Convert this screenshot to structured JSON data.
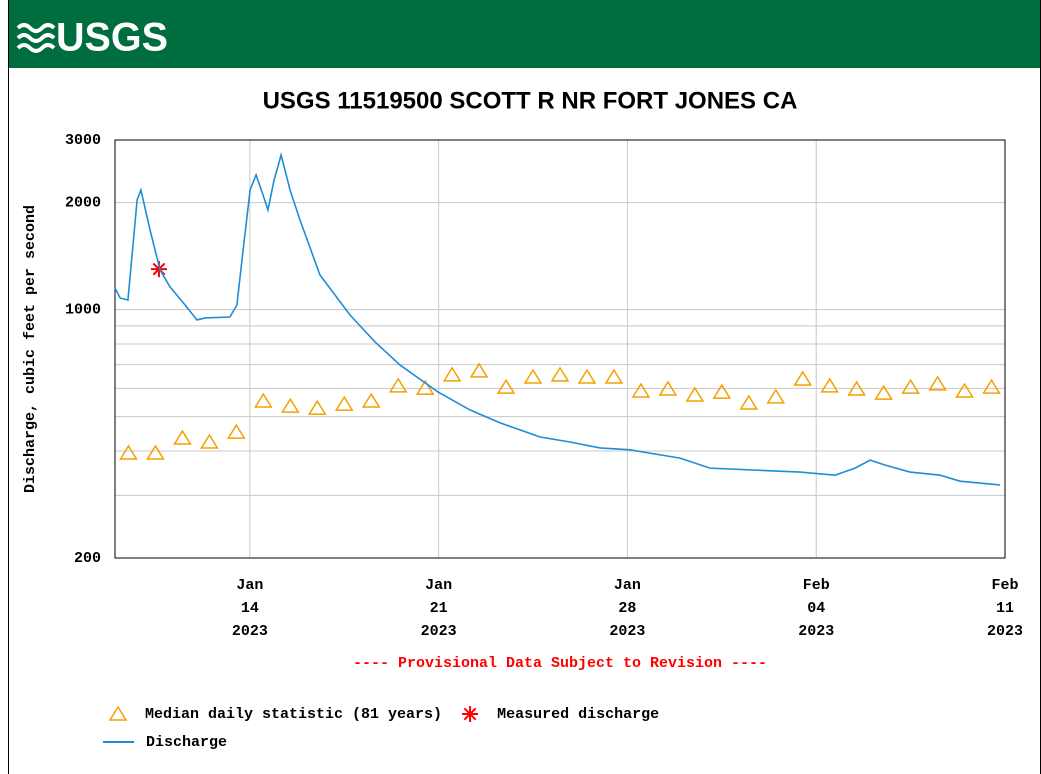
{
  "header": {
    "logo": "USGS"
  },
  "chart_data": {
    "type": "line",
    "title": "USGS 11519500 SCOTT R NR FORT JONES CA",
    "y_label": "Discharge, cubic feet per second",
    "note": "---- Provisional Data Subject to Revision ----",
    "log_y": true,
    "grid": true,
    "xlim": [
      9,
      42
    ],
    "xticks": [
      {
        "value": 14,
        "label": "Jan 14 2023"
      },
      {
        "value": 21,
        "label": "Jan 21 2023"
      },
      {
        "value": 28,
        "label": "Jan 28 2023"
      },
      {
        "value": 35,
        "label": "Feb 04 2023"
      },
      {
        "value": 42,
        "label": "Feb 11 2023"
      }
    ],
    "ylim": [
      200,
      3000
    ],
    "yticks": [
      200,
      1000,
      2000,
      3000
    ],
    "minor_yticks": [
      300,
      400,
      500,
      600,
      700,
      800,
      900
    ],
    "series": [
      {
        "name": "Median daily statistic (81 years)",
        "color": "#f5a000",
        "marker": "triangle",
        "x": [
          9.5,
          10.5,
          11.5,
          12.5,
          13.5,
          14.5,
          15.5,
          16.5,
          17.5,
          18.5,
          19.5,
          20.5,
          21.5,
          22.5,
          23.5,
          24.5,
          25.5,
          26.5,
          27.5,
          28.5,
          29.5,
          30.5,
          31.5,
          32.5,
          33.5,
          34.5,
          35.5,
          36.5,
          37.5,
          38.5,
          39.5,
          40.5,
          41.5
        ],
        "values": [
          395,
          395,
          435,
          424,
          452,
          553,
          535,
          528,
          542,
          553,
          610,
          601,
          655,
          672,
          605,
          646,
          655,
          646,
          646,
          590,
          598,
          575,
          586,
          546,
          568,
          638,
          610,
          598,
          582,
          605,
          618,
          590,
          605
        ]
      },
      {
        "name": "Measured discharge",
        "color": "#ff0000",
        "marker": "asterisk",
        "x": [
          10.63
        ],
        "values": [
          1300
        ]
      },
      {
        "name": "Discharge",
        "color": "#1f8dd6",
        "marker": "line",
        "x": [
          9.0,
          9.19,
          9.48,
          9.82,
          9.96,
          10.3,
          10.67,
          11.04,
          11.6,
          12.04,
          12.34,
          13.26,
          13.52,
          13.75,
          14.01,
          14.23,
          14.49,
          14.67,
          14.9,
          15.16,
          15.49,
          15.86,
          16.6,
          17.71,
          18.64,
          19.57,
          20.98,
          22.16,
          23.28,
          24.76,
          25.87,
          26.98,
          28.1,
          29.95,
          31.06,
          32.54,
          34.4,
          35.7,
          36.44,
          37.0,
          37.56,
          38.48,
          39.6,
          40.33,
          41.81
        ],
        "values": [
          1150,
          1078,
          1064,
          2034,
          2170,
          1675,
          1293,
          1158,
          1030,
          935,
          947,
          953,
          1030,
          1471,
          2170,
          2392,
          2101,
          1908,
          2316,
          2722,
          2170,
          1787,
          1251,
          966,
          811,
          698,
          586,
          522,
          480,
          438,
          424,
          408,
          403,
          382,
          358,
          354,
          349,
          342,
          358,
          377,
          365,
          349,
          342,
          329,
          321
        ]
      }
    ]
  }
}
